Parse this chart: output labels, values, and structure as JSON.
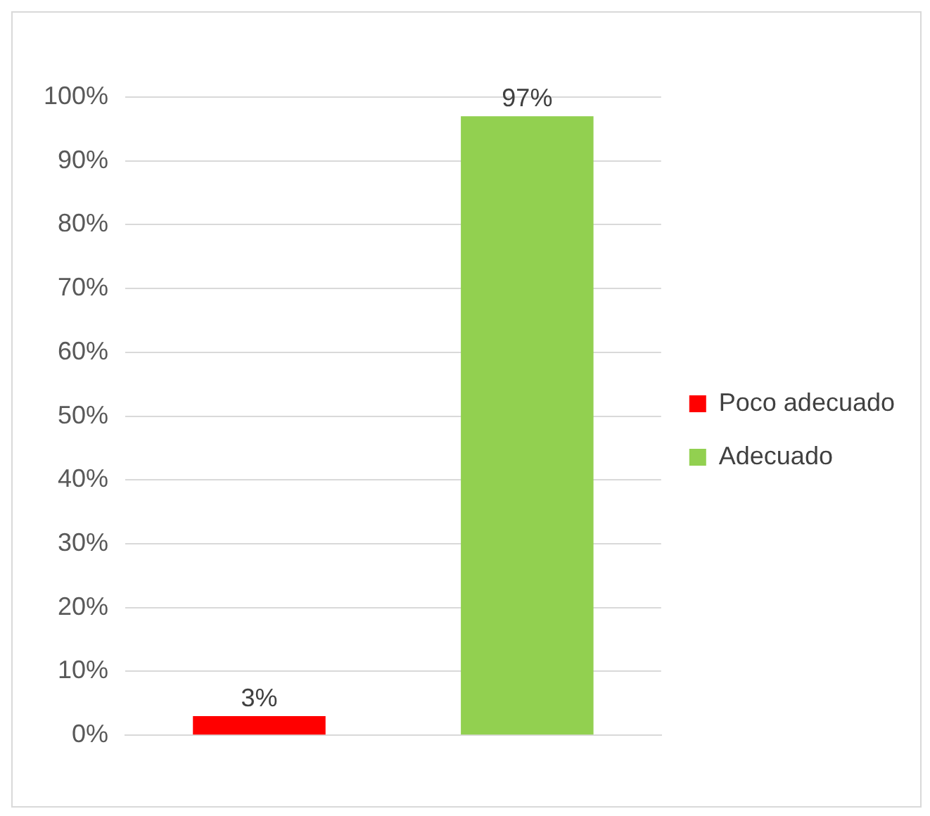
{
  "chart_data": {
    "type": "bar",
    "categories": [
      null,
      null
    ],
    "series": [
      {
        "name": "Poco adecuado",
        "color": "#ff0000",
        "values": [
          3,
          null
        ],
        "value_labels": [
          "3%",
          null
        ]
      },
      {
        "name": "Adecuado",
        "color": "#92d050",
        "values": [
          null,
          97
        ],
        "value_labels": [
          null,
          "97%"
        ]
      }
    ],
    "ylim": [
      0,
      100
    ],
    "yticks": [
      {
        "value": 0,
        "label": "0%"
      },
      {
        "value": 10,
        "label": "10%"
      },
      {
        "value": 20,
        "label": "20%"
      },
      {
        "value": 30,
        "label": "30%"
      },
      {
        "value": 40,
        "label": "40%"
      },
      {
        "value": 50,
        "label": "50%"
      },
      {
        "value": 60,
        "label": "60%"
      },
      {
        "value": 70,
        "label": "70%"
      },
      {
        "value": 80,
        "label": "80%"
      },
      {
        "value": 90,
        "label": "90%"
      },
      {
        "value": 100,
        "label": "100%"
      }
    ],
    "grid": "y",
    "legend": "right"
  }
}
